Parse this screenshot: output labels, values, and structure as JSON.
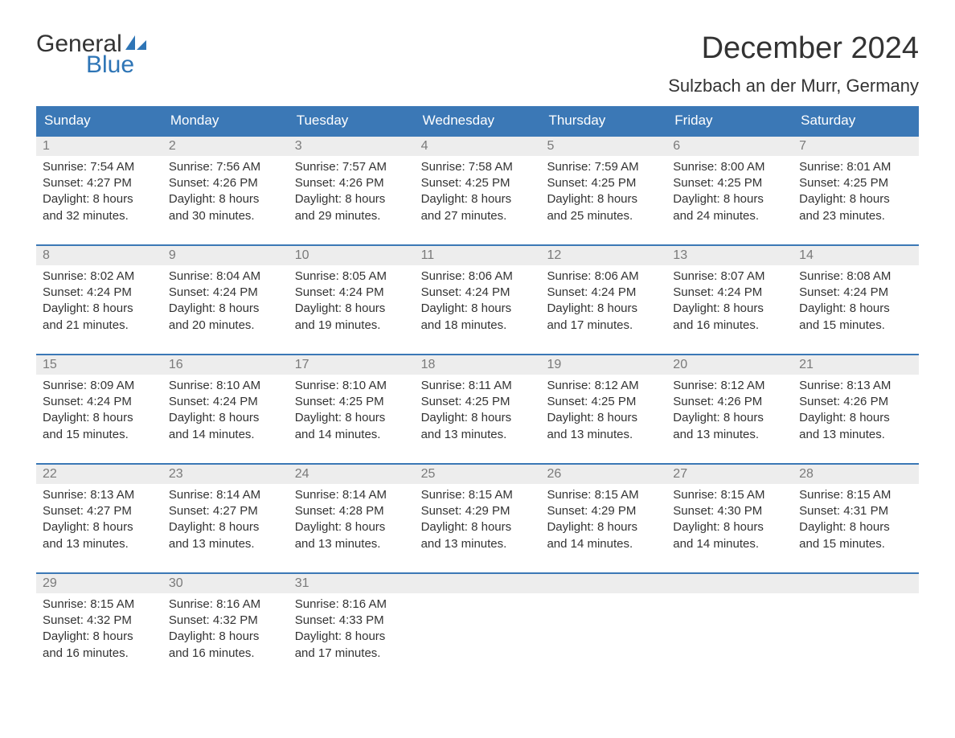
{
  "logo": {
    "text_top": "General",
    "text_bottom": "Blue",
    "accent_color": "#2e75b6"
  },
  "title": "December 2024",
  "location": "Sulzbach an der Murr, Germany",
  "colors": {
    "header_bg": "#3b78b6",
    "header_fg": "#ffffff",
    "week_border": "#3b78b6",
    "daynum_bg": "#ededed",
    "daynum_fg": "#7a7a7a",
    "body_bg": "#ffffff",
    "text": "#333333"
  },
  "typography": {
    "title_fontsize": 38,
    "location_fontsize": 22,
    "header_fontsize": 17,
    "daynum_fontsize": 16,
    "body_fontsize": 15
  },
  "day_labels": [
    "Sunday",
    "Monday",
    "Tuesday",
    "Wednesday",
    "Thursday",
    "Friday",
    "Saturday"
  ],
  "field_labels": {
    "sunrise": "Sunrise:",
    "sunset": "Sunset:",
    "daylight": "Daylight:"
  },
  "weeks": [
    [
      {
        "n": "1",
        "sunrise": "7:54 AM",
        "sunset": "4:27 PM",
        "daylight_l1": "8 hours",
        "daylight_l2": "and 32 minutes."
      },
      {
        "n": "2",
        "sunrise": "7:56 AM",
        "sunset": "4:26 PM",
        "daylight_l1": "8 hours",
        "daylight_l2": "and 30 minutes."
      },
      {
        "n": "3",
        "sunrise": "7:57 AM",
        "sunset": "4:26 PM",
        "daylight_l1": "8 hours",
        "daylight_l2": "and 29 minutes."
      },
      {
        "n": "4",
        "sunrise": "7:58 AM",
        "sunset": "4:25 PM",
        "daylight_l1": "8 hours",
        "daylight_l2": "and 27 minutes."
      },
      {
        "n": "5",
        "sunrise": "7:59 AM",
        "sunset": "4:25 PM",
        "daylight_l1": "8 hours",
        "daylight_l2": "and 25 minutes."
      },
      {
        "n": "6",
        "sunrise": "8:00 AM",
        "sunset": "4:25 PM",
        "daylight_l1": "8 hours",
        "daylight_l2": "and 24 minutes."
      },
      {
        "n": "7",
        "sunrise": "8:01 AM",
        "sunset": "4:25 PM",
        "daylight_l1": "8 hours",
        "daylight_l2": "and 23 minutes."
      }
    ],
    [
      {
        "n": "8",
        "sunrise": "8:02 AM",
        "sunset": "4:24 PM",
        "daylight_l1": "8 hours",
        "daylight_l2": "and 21 minutes."
      },
      {
        "n": "9",
        "sunrise": "8:04 AM",
        "sunset": "4:24 PM",
        "daylight_l1": "8 hours",
        "daylight_l2": "and 20 minutes."
      },
      {
        "n": "10",
        "sunrise": "8:05 AM",
        "sunset": "4:24 PM",
        "daylight_l1": "8 hours",
        "daylight_l2": "and 19 minutes."
      },
      {
        "n": "11",
        "sunrise": "8:06 AM",
        "sunset": "4:24 PM",
        "daylight_l1": "8 hours",
        "daylight_l2": "and 18 minutes."
      },
      {
        "n": "12",
        "sunrise": "8:06 AM",
        "sunset": "4:24 PM",
        "daylight_l1": "8 hours",
        "daylight_l2": "and 17 minutes."
      },
      {
        "n": "13",
        "sunrise": "8:07 AM",
        "sunset": "4:24 PM",
        "daylight_l1": "8 hours",
        "daylight_l2": "and 16 minutes."
      },
      {
        "n": "14",
        "sunrise": "8:08 AM",
        "sunset": "4:24 PM",
        "daylight_l1": "8 hours",
        "daylight_l2": "and 15 minutes."
      }
    ],
    [
      {
        "n": "15",
        "sunrise": "8:09 AM",
        "sunset": "4:24 PM",
        "daylight_l1": "8 hours",
        "daylight_l2": "and 15 minutes."
      },
      {
        "n": "16",
        "sunrise": "8:10 AM",
        "sunset": "4:24 PM",
        "daylight_l1": "8 hours",
        "daylight_l2": "and 14 minutes."
      },
      {
        "n": "17",
        "sunrise": "8:10 AM",
        "sunset": "4:25 PM",
        "daylight_l1": "8 hours",
        "daylight_l2": "and 14 minutes."
      },
      {
        "n": "18",
        "sunrise": "8:11 AM",
        "sunset": "4:25 PM",
        "daylight_l1": "8 hours",
        "daylight_l2": "and 13 minutes."
      },
      {
        "n": "19",
        "sunrise": "8:12 AM",
        "sunset": "4:25 PM",
        "daylight_l1": "8 hours",
        "daylight_l2": "and 13 minutes."
      },
      {
        "n": "20",
        "sunrise": "8:12 AM",
        "sunset": "4:26 PM",
        "daylight_l1": "8 hours",
        "daylight_l2": "and 13 minutes."
      },
      {
        "n": "21",
        "sunrise": "8:13 AM",
        "sunset": "4:26 PM",
        "daylight_l1": "8 hours",
        "daylight_l2": "and 13 minutes."
      }
    ],
    [
      {
        "n": "22",
        "sunrise": "8:13 AM",
        "sunset": "4:27 PM",
        "daylight_l1": "8 hours",
        "daylight_l2": "and 13 minutes."
      },
      {
        "n": "23",
        "sunrise": "8:14 AM",
        "sunset": "4:27 PM",
        "daylight_l1": "8 hours",
        "daylight_l2": "and 13 minutes."
      },
      {
        "n": "24",
        "sunrise": "8:14 AM",
        "sunset": "4:28 PM",
        "daylight_l1": "8 hours",
        "daylight_l2": "and 13 minutes."
      },
      {
        "n": "25",
        "sunrise": "8:15 AM",
        "sunset": "4:29 PM",
        "daylight_l1": "8 hours",
        "daylight_l2": "and 13 minutes."
      },
      {
        "n": "26",
        "sunrise": "8:15 AM",
        "sunset": "4:29 PM",
        "daylight_l1": "8 hours",
        "daylight_l2": "and 14 minutes."
      },
      {
        "n": "27",
        "sunrise": "8:15 AM",
        "sunset": "4:30 PM",
        "daylight_l1": "8 hours",
        "daylight_l2": "and 14 minutes."
      },
      {
        "n": "28",
        "sunrise": "8:15 AM",
        "sunset": "4:31 PM",
        "daylight_l1": "8 hours",
        "daylight_l2": "and 15 minutes."
      }
    ],
    [
      {
        "n": "29",
        "sunrise": "8:15 AM",
        "sunset": "4:32 PM",
        "daylight_l1": "8 hours",
        "daylight_l2": "and 16 minutes."
      },
      {
        "n": "30",
        "sunrise": "8:16 AM",
        "sunset": "4:32 PM",
        "daylight_l1": "8 hours",
        "daylight_l2": "and 16 minutes."
      },
      {
        "n": "31",
        "sunrise": "8:16 AM",
        "sunset": "4:33 PM",
        "daylight_l1": "8 hours",
        "daylight_l2": "and 17 minutes."
      },
      {
        "empty": true
      },
      {
        "empty": true
      },
      {
        "empty": true
      },
      {
        "empty": true
      }
    ]
  ]
}
